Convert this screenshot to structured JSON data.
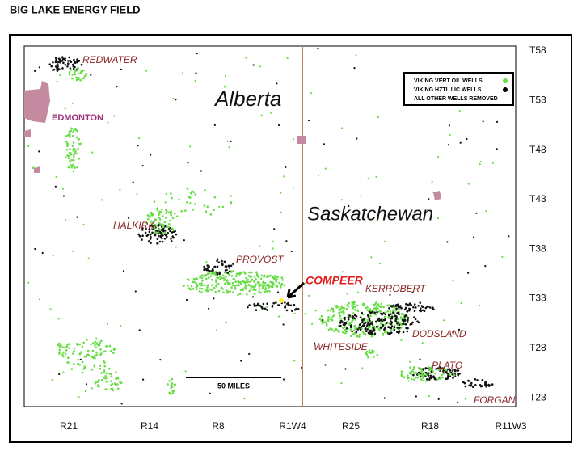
{
  "title": "BIG LAKE ENERGY FIELD",
  "places": {
    "redwater": "REDWATER",
    "edmonton": "EDMONTON",
    "alberta": "Alberta",
    "saskatchewan": "Saskatchewan",
    "halkirk": "HALKIRK",
    "provost": "PROVOST",
    "compeer": "COMPEER",
    "kerrobert": "KERROBERT",
    "dodsland": "DODSLAND",
    "whiteside": "WHITESIDE",
    "plato": "PLATO",
    "forgan": "FORGAN"
  },
  "legend": {
    "items": [
      "VIKING VERT OIL WELLS",
      "VIKING HZTL LIC WELLS",
      "ALL OTHER WELLS REMOVED"
    ]
  },
  "scale_bar": "50 MILES",
  "townships": [
    "T58",
    "T53",
    "T48",
    "T43",
    "T38",
    "T33",
    "T28",
    "T23"
  ],
  "ranges": [
    "R21",
    "R14",
    "R8",
    "R1W4",
    "R25",
    "R18",
    "R11W3"
  ]
}
